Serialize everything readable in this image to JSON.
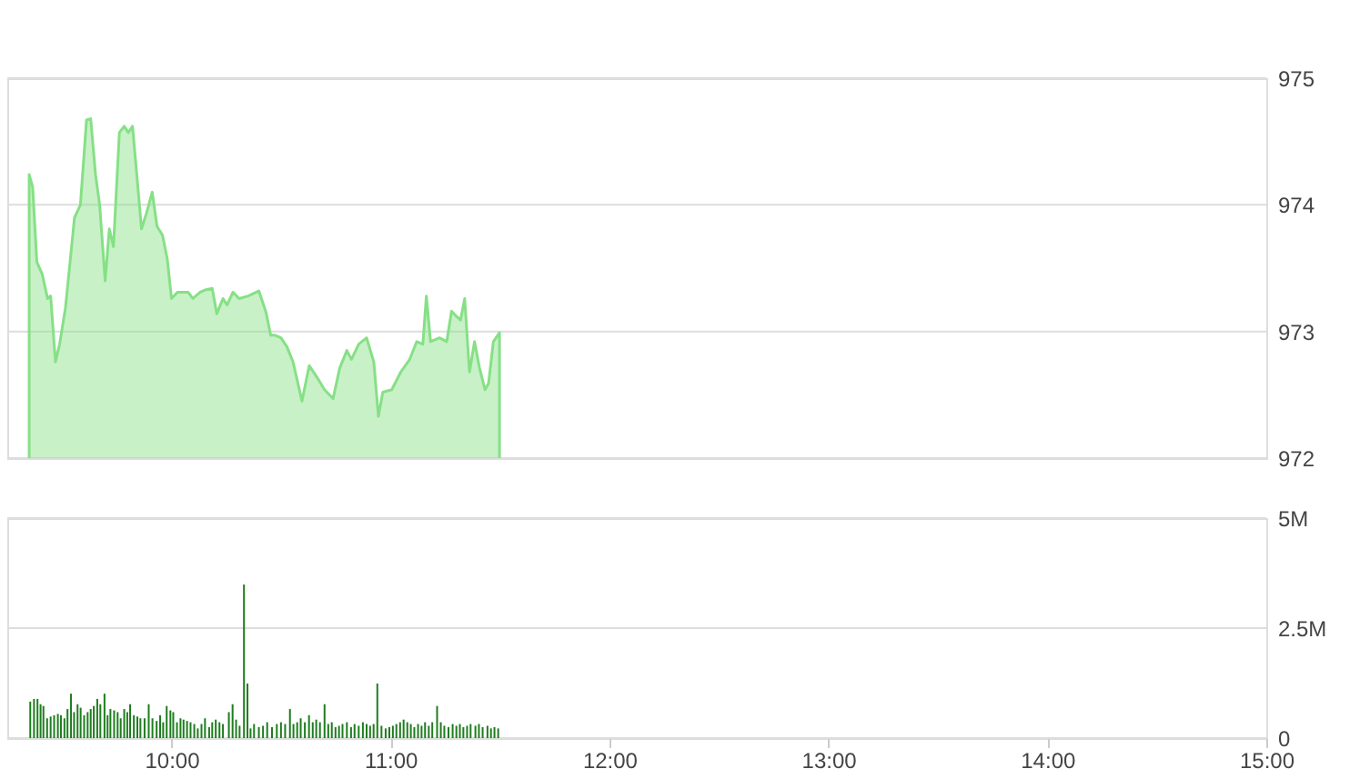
{
  "chart_data": [
    {
      "type": "area",
      "color": "#86e086",
      "xlim": [
        9.25,
        15
      ],
      "ylim": [
        972,
        975
      ],
      "yticks": [
        972,
        973,
        974,
        975
      ],
      "grid": "y",
      "tick_labels": "y",
      "x": [
        9.35,
        9.366,
        9.385,
        9.41,
        9.434,
        9.448,
        9.47,
        9.489,
        9.516,
        9.557,
        9.584,
        9.612,
        9.631,
        9.653,
        9.672,
        9.697,
        9.716,
        9.735,
        9.762,
        9.784,
        9.803,
        9.822,
        9.844,
        9.863,
        9.885,
        9.912,
        9.934,
        9.959,
        9.981,
        10.0,
        10.027,
        10.049,
        10.076,
        10.098,
        10.131,
        10.158,
        10.186,
        10.207,
        10.235,
        10.254,
        10.281,
        10.309,
        10.35,
        10.399,
        10.432,
        10.453,
        10.473,
        10.5,
        10.527,
        10.555,
        10.596,
        10.629,
        10.664,
        10.699,
        10.738,
        10.768,
        10.801,
        10.822,
        10.855,
        10.891,
        10.924,
        10.945,
        10.965,
        11.006,
        11.047,
        11.088,
        11.12,
        11.148,
        11.164,
        11.183,
        11.224,
        11.257,
        11.279,
        11.301,
        11.32,
        11.339,
        11.361,
        11.384,
        11.407,
        11.432,
        11.448,
        11.47,
        11.498
      ],
      "values": [
        974.24,
        974.14,
        973.55,
        973.45,
        973.26,
        973.28,
        972.76,
        972.9,
        973.19,
        973.9,
        974.0,
        974.67,
        974.68,
        974.24,
        974.0,
        973.4,
        973.81,
        973.67,
        974.57,
        974.62,
        974.57,
        974.62,
        974.19,
        973.81,
        973.93,
        974.1,
        973.83,
        973.76,
        973.57,
        973.26,
        973.31,
        973.31,
        973.31,
        973.26,
        973.31,
        973.33,
        973.34,
        973.14,
        973.26,
        973.21,
        973.31,
        973.26,
        973.28,
        973.32,
        973.15,
        972.97,
        972.97,
        972.95,
        972.88,
        972.76,
        972.45,
        972.73,
        972.64,
        972.54,
        972.47,
        972.71,
        972.85,
        972.78,
        972.9,
        972.95,
        972.76,
        972.33,
        972.52,
        972.54,
        972.68,
        972.78,
        972.92,
        972.9,
        973.28,
        972.92,
        972.95,
        972.92,
        973.16,
        973.12,
        973.09,
        973.26,
        972.68,
        972.92,
        972.71,
        972.54,
        972.59,
        972.92,
        972.99
      ]
    },
    {
      "type": "bar",
      "color": "#1e7d1e",
      "xlim": [
        9.25,
        15
      ],
      "xticks": [
        {
          "value": 10,
          "label": "10:00"
        },
        {
          "value": 11,
          "label": "11:00"
        },
        {
          "value": 12,
          "label": "12:00"
        },
        {
          "value": 13,
          "label": "13:00"
        },
        {
          "value": 14,
          "label": "14:00"
        },
        {
          "value": 15,
          "label": "15:00"
        }
      ],
      "ylim": [
        0,
        5
      ],
      "yticks": [
        0,
        {
          "value": 2.5,
          "label": "2.5M"
        },
        {
          "value": 5,
          "label": "5M"
        }
      ],
      "grid": "y",
      "x": [
        9.355,
        9.372,
        9.388,
        9.402,
        9.415,
        9.432,
        9.448,
        9.464,
        9.481,
        9.495,
        9.511,
        9.525,
        9.541,
        9.555,
        9.571,
        9.585,
        9.601,
        9.617,
        9.631,
        9.645,
        9.661,
        9.675,
        9.694,
        9.708,
        9.721,
        9.738,
        9.754,
        9.768,
        9.784,
        9.798,
        9.811,
        9.828,
        9.844,
        9.858,
        9.877,
        9.896,
        9.913,
        9.932,
        9.948,
        9.962,
        9.978,
        9.995,
        10.008,
        10.025,
        10.041,
        10.055,
        10.071,
        10.087,
        10.104,
        10.12,
        10.137,
        10.153,
        10.172,
        10.186,
        10.202,
        10.219,
        10.235,
        10.262,
        10.279,
        10.295,
        10.311,
        10.331,
        10.347,
        10.361,
        10.377,
        10.399,
        10.418,
        10.437,
        10.459,
        10.481,
        10.5,
        10.519,
        10.541,
        10.557,
        10.574,
        10.59,
        10.609,
        10.628,
        10.645,
        10.661,
        10.678,
        10.699,
        10.716,
        10.732,
        10.749,
        10.765,
        10.781,
        10.801,
        10.82,
        10.836,
        10.855,
        10.874,
        10.891,
        10.907,
        10.923,
        10.94,
        10.959,
        10.978,
        10.995,
        11.011,
        11.027,
        11.044,
        11.06,
        11.077,
        11.093,
        11.109,
        11.126,
        11.142,
        11.158,
        11.175,
        11.191,
        11.213,
        11.23,
        11.246,
        11.265,
        11.284,
        11.301,
        11.317,
        11.333,
        11.35,
        11.366,
        11.388,
        11.404,
        11.421,
        11.443,
        11.459,
        11.475,
        11.492
      ],
      "values": [
        0.83,
        0.89,
        0.89,
        0.77,
        0.73,
        0.45,
        0.49,
        0.52,
        0.55,
        0.52,
        0.45,
        0.66,
        1.01,
        0.59,
        0.77,
        0.69,
        0.52,
        0.59,
        0.66,
        0.73,
        0.89,
        0.77,
        1.01,
        0.52,
        0.66,
        0.63,
        0.59,
        0.45,
        0.66,
        0.59,
        0.77,
        0.52,
        0.49,
        0.45,
        0.45,
        0.77,
        0.45,
        0.39,
        0.52,
        0.36,
        0.73,
        0.63,
        0.59,
        0.36,
        0.45,
        0.42,
        0.39,
        0.36,
        0.32,
        0.22,
        0.32,
        0.45,
        0.25,
        0.36,
        0.42,
        0.36,
        0.32,
        0.59,
        0.77,
        0.42,
        0.28,
        3.49,
        1.24,
        0.22,
        0.32,
        0.25,
        0.28,
        0.36,
        0.25,
        0.32,
        0.36,
        0.32,
        0.66,
        0.32,
        0.36,
        0.45,
        0.36,
        0.52,
        0.36,
        0.42,
        0.36,
        0.77,
        0.32,
        0.36,
        0.25,
        0.28,
        0.32,
        0.36,
        0.25,
        0.32,
        0.28,
        0.36,
        0.32,
        0.28,
        0.32,
        1.24,
        0.28,
        0.22,
        0.25,
        0.28,
        0.32,
        0.36,
        0.42,
        0.36,
        0.32,
        0.25,
        0.32,
        0.28,
        0.36,
        0.28,
        0.36,
        0.73,
        0.36,
        0.28,
        0.25,
        0.32,
        0.28,
        0.32,
        0.25,
        0.28,
        0.32,
        0.28,
        0.32,
        0.25,
        0.28,
        0.22,
        0.25,
        0.22
      ]
    }
  ]
}
